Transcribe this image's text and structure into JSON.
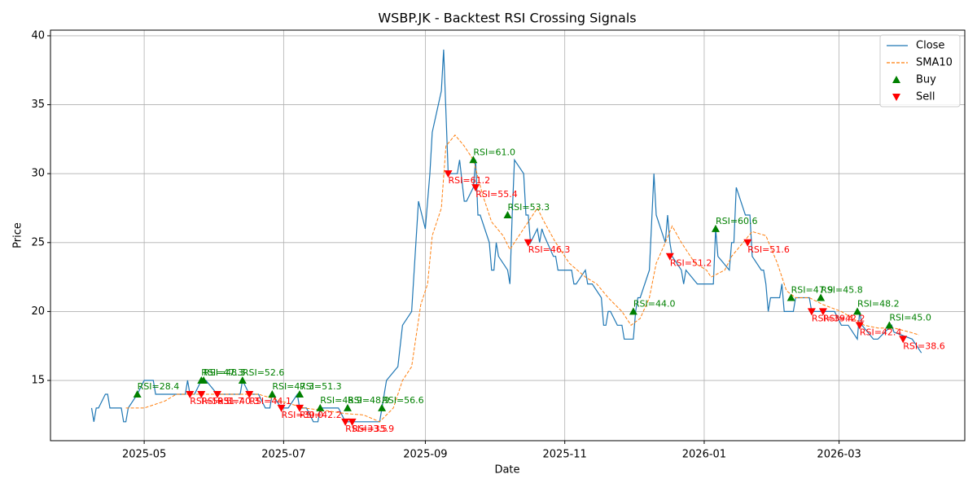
{
  "chart_data": {
    "type": "line",
    "title": "WSBP.JK - Backtest RSI Crossing Signals",
    "xlabel": "Date",
    "ylabel": "Price",
    "xlim": [
      "2025-03-21",
      "2026-04-25"
    ],
    "xticks": [
      {
        "value": "2025-05-01",
        "label": "2025-05"
      },
      {
        "value": "2025-07-01",
        "label": "2025-07"
      },
      {
        "value": "2025-09-01",
        "label": "2025-09"
      },
      {
        "value": "2025-11-01",
        "label": "2025-11"
      },
      {
        "value": "2026-01-01",
        "label": "2026-01"
      },
      {
        "value": "2026-03-01",
        "label": "2026-03"
      }
    ],
    "ylim": [
      10.63,
      40.41
    ],
    "yticks": [
      15,
      20,
      25,
      30,
      35,
      40
    ],
    "grid": true,
    "legend": "upper right",
    "series": [
      {
        "name": "Close",
        "color": "#1f77b4",
        "linestyle": "solid",
        "x": [
          "2025-04-08",
          "2025-04-09",
          "2025-04-10",
          "2025-04-11",
          "2025-04-14",
          "2025-04-15",
          "2025-04-16",
          "2025-04-21",
          "2025-04-22",
          "2025-04-23",
          "2025-04-24",
          "2025-04-28",
          "2025-05-01",
          "2025-05-05",
          "2025-05-06",
          "2025-05-19",
          "2025-05-20",
          "2025-05-21",
          "2025-05-23",
          "2025-05-26",
          "2025-05-28",
          "2025-06-02",
          "2025-06-12",
          "2025-06-13",
          "2025-06-16",
          "2025-06-20",
          "2025-06-23",
          "2025-06-25",
          "2025-06-26",
          "2025-06-30",
          "2025-07-03",
          "2025-07-07",
          "2025-07-08",
          "2025-07-11",
          "2025-07-14",
          "2025-07-16",
          "2025-07-17",
          "2025-07-25",
          "2025-07-28",
          "2025-08-12",
          "2025-08-15",
          "2025-08-20",
          "2025-08-22",
          "2025-08-26",
          "2025-08-29",
          "2025-09-01",
          "2025-09-03",
          "2025-09-04",
          "2025-09-08",
          "2025-09-09",
          "2025-09-11",
          "2025-09-15",
          "2025-09-16",
          "2025-09-18",
          "2025-09-19",
          "2025-09-22",
          "2025-09-23",
          "2025-09-24",
          "2025-09-25",
          "2025-09-29",
          "2025-09-30",
          "2025-10-01",
          "2025-10-02",
          "2025-10-03",
          "2025-10-07",
          "2025-10-08",
          "2025-10-09",
          "2025-10-10",
          "2025-10-14",
          "2025-10-15",
          "2025-10-16",
          "2025-10-17",
          "2025-10-20",
          "2025-10-21",
          "2025-10-22",
          "2025-10-23",
          "2025-10-27",
          "2025-10-28",
          "2025-10-29",
          "2025-11-04",
          "2025-11-05",
          "2025-11-06",
          "2025-11-10",
          "2025-11-11",
          "2025-11-13",
          "2025-11-17",
          "2025-11-18",
          "2025-11-19",
          "2025-11-20",
          "2025-11-21",
          "2025-11-24",
          "2025-11-26",
          "2025-11-27",
          "2025-12-01",
          "2025-12-02",
          "2025-12-03",
          "2025-12-04",
          "2025-12-08",
          "2025-12-10",
          "2025-12-11",
          "2025-12-15",
          "2025-12-16",
          "2025-12-17",
          "2025-12-18",
          "2025-12-22",
          "2025-12-23",
          "2025-12-24",
          "2025-12-29",
          "2026-01-05",
          "2026-01-06",
          "2026-01-07",
          "2026-01-12",
          "2026-01-13",
          "2026-01-14",
          "2026-01-15",
          "2026-01-19",
          "2026-01-21",
          "2026-01-22",
          "2026-01-26",
          "2026-01-27",
          "2026-01-28",
          "2026-01-29",
          "2026-01-30",
          "2026-02-03",
          "2026-02-04",
          "2026-02-05",
          "2026-02-09",
          "2026-02-10",
          "2026-02-16",
          "2026-02-17",
          "2026-02-23",
          "2026-02-27",
          "2026-03-02",
          "2026-03-05",
          "2026-03-09",
          "2026-03-10",
          "2026-03-11",
          "2026-03-16",
          "2026-03-18",
          "2026-03-24",
          "2026-03-25",
          "2026-04-02",
          "2026-04-06"
        ],
        "values": [
          13,
          12,
          13,
          13,
          14,
          14,
          13,
          13,
          12,
          12,
          13,
          14,
          15,
          15,
          14,
          14,
          15,
          14,
          14,
          15,
          15,
          14,
          14,
          15,
          14,
          14,
          13,
          13,
          14,
          13,
          13,
          14,
          13,
          13,
          12,
          12,
          13,
          13,
          12,
          12,
          15,
          16,
          19,
          20,
          28,
          26,
          30,
          33,
          36,
          39,
          30,
          30,
          31,
          28,
          28,
          29,
          31,
          27,
          27,
          25,
          23,
          23,
          25,
          24,
          23,
          22,
          27,
          31,
          30,
          27,
          27,
          25,
          26,
          25,
          26,
          25.5,
          24,
          24,
          23,
          23,
          22,
          22,
          23,
          22,
          22,
          21,
          19,
          19,
          20,
          20,
          19,
          19,
          18,
          18,
          20,
          21,
          21,
          23,
          30,
          27,
          25,
          27,
          25,
          24,
          23,
          22,
          23,
          22,
          22,
          26,
          24,
          23,
          25,
          25,
          29,
          27,
          27,
          24,
          23,
          23,
          22,
          20,
          21,
          21,
          22,
          20,
          20,
          21,
          21,
          20,
          20,
          20,
          19,
          19,
          18,
          20,
          19,
          18,
          18,
          19,
          18.5,
          18,
          17
        ]
      },
      {
        "name": "SMA10",
        "color": "#ff7f0e",
        "linestyle": "dashed",
        "x": [
          "2025-04-23",
          "2025-05-01",
          "2025-05-10",
          "2025-05-15",
          "2025-06-01",
          "2025-06-20",
          "2025-06-30",
          "2025-07-10",
          "2025-07-20",
          "2025-07-28",
          "2025-08-05",
          "2025-08-12",
          "2025-08-18",
          "2025-08-22",
          "2025-08-26",
          "2025-08-30",
          "2025-09-02",
          "2025-09-04",
          "2025-09-08",
          "2025-09-10",
          "2025-09-14",
          "2025-09-18",
          "2025-09-22",
          "2025-09-26",
          "2025-09-30",
          "2025-10-05",
          "2025-10-08",
          "2025-10-12",
          "2025-10-16",
          "2025-10-20",
          "2025-10-23",
          "2025-10-28",
          "2025-11-03",
          "2025-11-10",
          "2025-11-15",
          "2025-11-20",
          "2025-11-26",
          "2025-11-30",
          "2025-12-04",
          "2025-12-08",
          "2025-12-11",
          "2025-12-15",
          "2025-12-18",
          "2025-12-22",
          "2025-12-28",
          "2026-01-02",
          "2026-01-04",
          "2026-01-10",
          "2026-01-13",
          "2026-01-18",
          "2026-01-22",
          "2026-01-28",
          "2026-02-02",
          "2026-02-06",
          "2026-02-10",
          "2026-02-16",
          "2026-02-22",
          "2026-03-02",
          "2026-03-07",
          "2026-03-12",
          "2026-03-18",
          "2026-03-25",
          "2026-04-01",
          "2026-04-05"
        ],
        "values": [
          13,
          13,
          13.5,
          14,
          14,
          14,
          13.5,
          13,
          12.8,
          12.6,
          12.5,
          12,
          13,
          15,
          16,
          20.5,
          22,
          25.5,
          27.5,
          32,
          32.8,
          32,
          31,
          28.5,
          26.5,
          25.5,
          24.5,
          25.5,
          26.5,
          27.5,
          26.5,
          25,
          23.5,
          22.5,
          22,
          21,
          20,
          19,
          19.5,
          21,
          23.5,
          25,
          26.2,
          25,
          23.5,
          23,
          22.5,
          23,
          24,
          25,
          25.8,
          25.5,
          23.5,
          21.5,
          21,
          21,
          20.5,
          20,
          19.5,
          19,
          18.8,
          18.8,
          18.5,
          18.3
        ]
      },
      {
        "name": "Buy",
        "color": "#008000",
        "marker": "up",
        "x": [
          "2025-04-28",
          "2025-05-26",
          "2025-05-27",
          "2025-06-13",
          "2025-06-26",
          "2025-07-08",
          "2025-07-17",
          "2025-07-29",
          "2025-08-13",
          "2025-09-22",
          "2025-10-07",
          "2025-12-01",
          "2026-01-06",
          "2026-02-08",
          "2026-02-21",
          "2026-03-09",
          "2026-03-23"
        ],
        "values": [
          14,
          15,
          15,
          15,
          14,
          14,
          13,
          13,
          13,
          31,
          27,
          20,
          26,
          21,
          21,
          20,
          19
        ],
        "labels": [
          "RSI=28.4",
          "RSI=47.3",
          "RSI=48.3",
          "RSI=52.6",
          "RSI=47.3",
          "RSI=51.3",
          "RSI=48.9",
          "RSI=48.9",
          "RSI=56.6",
          "RSI=61.0",
          "RSI=53.3",
          "RSI=44.0",
          "RSI=60.6",
          "RSI=47.9",
          "RSI=45.8",
          "RSI=48.2",
          "RSI=45.0"
        ]
      },
      {
        "name": "Sell",
        "color": "#ff0000",
        "marker": "down",
        "x": [
          "2025-05-21",
          "2025-05-26",
          "2025-06-02",
          "2025-06-16",
          "2025-06-30",
          "2025-07-08",
          "2025-07-28",
          "2025-07-31",
          "2025-09-11",
          "2025-09-23",
          "2025-10-16",
          "2025-12-17",
          "2026-01-20",
          "2026-02-17",
          "2026-02-22",
          "2026-03-10",
          "2026-03-29"
        ],
        "values": [
          14,
          14,
          14,
          14,
          13,
          13,
          12,
          12,
          30,
          29,
          25,
          24,
          25,
          20,
          20,
          19,
          18
        ],
        "labels": [
          "RSI=50.5",
          "RSI=51.7",
          "RSI=40.3",
          "RSI=44.1",
          "RSI=39.0",
          "RSI=42.2",
          "RSI=33.5",
          "RSI=35.9",
          "RSI=61.2",
          "RSI=55.4",
          "RSI=46.3",
          "RSI=51.2",
          "RSI=51.6",
          "RSI=39.4",
          "RSI=42.2",
          "RSI=42.4",
          "RSI=38.6"
        ]
      }
    ]
  }
}
